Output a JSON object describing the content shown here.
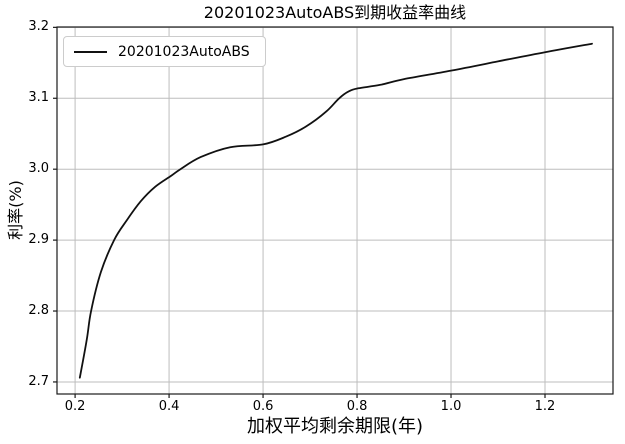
{
  "figure": {
    "title": "20201023AutoABS到期收益率曲线",
    "xlabel": "加权平均剩余期限(年)",
    "ylabel": "利率(%)",
    "legend": {
      "label": "20201023AutoABS"
    }
  },
  "colors": {
    "line": "#111111",
    "grid": "#bdbdbd",
    "spine": "#1a1a1a",
    "tick": "#1a1a1a",
    "background": "#ffffff",
    "legend_border": "#cccccc"
  },
  "chart_data": {
    "type": "line",
    "title": "20201023AutoABS到期收益率曲线",
    "xlabel": "加权平均剩余期限(年)",
    "ylabel": "利率(%)",
    "xlim": [
      0.1615,
      1.3447
    ],
    "ylim": [
      2.683,
      3.2005
    ],
    "xticks": [
      0.2,
      0.4,
      0.6,
      0.8,
      1.0,
      1.2
    ],
    "xtick_labels": [
      "0.2",
      "0.4",
      "0.6",
      "0.8",
      "1.0",
      "1.2"
    ],
    "yticks": [
      2.7,
      2.8,
      2.9,
      3.0,
      3.1,
      3.2
    ],
    "ytick_labels": [
      "2.7",
      "2.8",
      "2.9",
      "3.0",
      "3.1",
      "3.2"
    ],
    "grid": true,
    "legend_position": "upper left",
    "series": [
      {
        "name": "20201023AutoABS",
        "color": "#111111",
        "x": [
          0.21,
          0.225,
          0.234,
          0.255,
          0.283,
          0.31,
          0.34,
          0.37,
          0.405,
          0.424,
          0.467,
          0.53,
          0.6,
          0.649,
          0.691,
          0.734,
          0.762,
          0.783,
          0.803,
          0.85,
          0.9,
          1.0,
          1.1,
          1.2,
          1.3
        ],
        "y": [
          2.706,
          2.76,
          2.8,
          2.855,
          2.9,
          2.928,
          2.955,
          2.975,
          2.991,
          3.0,
          3.017,
          3.031,
          3.035,
          3.046,
          3.06,
          3.081,
          3.1,
          3.11,
          3.114,
          3.119,
          3.127,
          3.139,
          3.152,
          3.165,
          3.177
        ]
      }
    ]
  }
}
